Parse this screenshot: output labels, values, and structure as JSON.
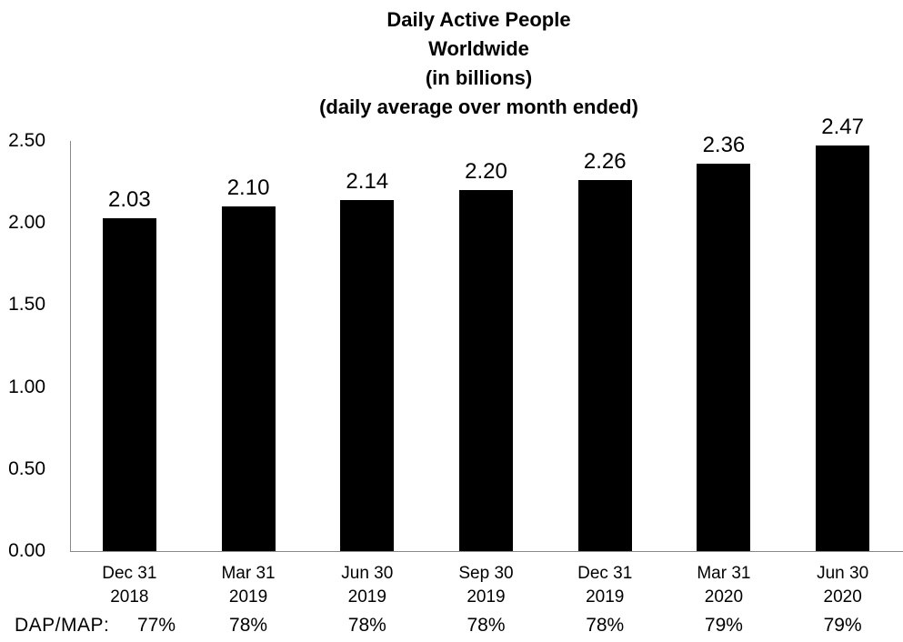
{
  "chart_data": {
    "type": "bar",
    "title": "Daily Active People Worldwide (in billions) (daily average over month ended)",
    "title_lines": [
      "Daily Active People",
      "Worldwide",
      "(in billions)",
      "(daily average over month ended)"
    ],
    "categories": [
      "Dec 31 2018",
      "Mar 31 2019",
      "Jun 30 2019",
      "Sep 30 2019",
      "Dec 31 2019",
      "Mar 31 2020",
      "Jun 30 2020"
    ],
    "category_lines": [
      [
        "Dec 31",
        "2018"
      ],
      [
        "Mar 31",
        "2019"
      ],
      [
        "Jun 30",
        "2019"
      ],
      [
        "Sep 30",
        "2019"
      ],
      [
        "Dec 31",
        "2019"
      ],
      [
        "Mar 31",
        "2020"
      ],
      [
        "Jun 30",
        "2020"
      ]
    ],
    "values": [
      2.03,
      2.1,
      2.14,
      2.2,
      2.26,
      2.36,
      2.47
    ],
    "value_labels": [
      "2.03",
      "2.10",
      "2.14",
      "2.20",
      "2.26",
      "2.36",
      "2.47"
    ],
    "footer": {
      "label": "DAP/MAP:",
      "values": [
        "77%",
        "78%",
        "78%",
        "78%",
        "78%",
        "79%",
        "79%"
      ]
    },
    "y_axis": {
      "ticks": [
        "0.00",
        "0.50",
        "1.00",
        "1.50",
        "2.00",
        "2.50"
      ],
      "min": 0,
      "max": 2.5
    },
    "xlabel": "",
    "ylabel": "",
    "grid": false,
    "legend": "none",
    "colors": {
      "bar": "#000000",
      "axis": "#898989",
      "text": "#000000",
      "background": "#ffffff"
    }
  }
}
